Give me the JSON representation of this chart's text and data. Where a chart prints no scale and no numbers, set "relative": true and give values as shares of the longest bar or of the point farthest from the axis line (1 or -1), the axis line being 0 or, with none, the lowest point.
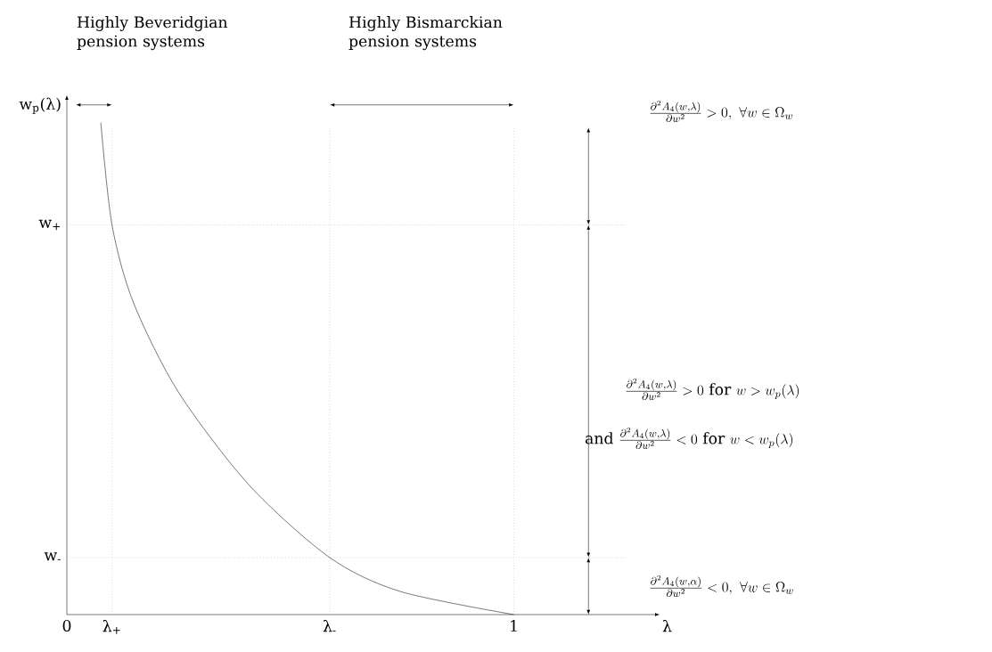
{
  "chart_data": {
    "type": "line",
    "relative": true,
    "xlabel": "λ",
    "ylabel": "w$_{p}$(λ)",
    "x": [
      0.076,
      0.101,
      0.149,
      0.249,
      0.408,
      0.588,
      0.746,
      1.0
    ],
    "series": [
      {
        "color": "#000000",
        "values": [
          1.0,
          0.792,
          0.634,
          0.453,
          0.263,
          0.116,
          0.047,
          0.0
        ]
      }
    ],
    "xlim": [
      0,
      1.32
    ],
    "xticks": [
      0,
      {
        "value": 0.101,
        "label": "λ$_{+}$"
      },
      {
        "value": 0.588,
        "label": "λ$_{-}$"
      },
      1
    ],
    "ref_lines": [
      {
        "axis": "y",
        "value": 0.792,
        "label": "w$_{+}$",
        "line_style": "dotted"
      },
      {
        "axis": "y",
        "value": 0.116,
        "label": "w$_{-}$",
        "line_style": "dotted"
      },
      {
        "axis": "x",
        "value": 0.101,
        "label": null,
        "line_style": "dotted"
      },
      {
        "axis": "x",
        "value": 0.588,
        "label": null,
        "line_style": "dotted"
      },
      {
        "axis": "x",
        "value": 1,
        "label": null,
        "line_style": "dotted"
      }
    ],
    "annotations": [
      "Highly Beveridgian pension systems",
      "Highly Bismarckian pension systems",
      "\\frac{\\partial^2 A_4(w,\\lambda)}{\\partial w^2} > 0,\\ \\forall w \\in \\Omega_w",
      "\\frac{\\partial^2 A_4(w,\\lambda)}{\\partial w^2} > 0 \\text{ for } w > w_p(\\lambda)",
      "\\text{and } \\frac{\\partial^2 A_4(w,\\lambda)}{\\partial w^2} < 0 \\text{ for } w < w_p(\\lambda)",
      "\\frac{\\partial^2 A_4(w,\\alpha)}{\\partial w^2} < 0,\\ \\forall w \\in \\Omega_w"
    ]
  }
}
